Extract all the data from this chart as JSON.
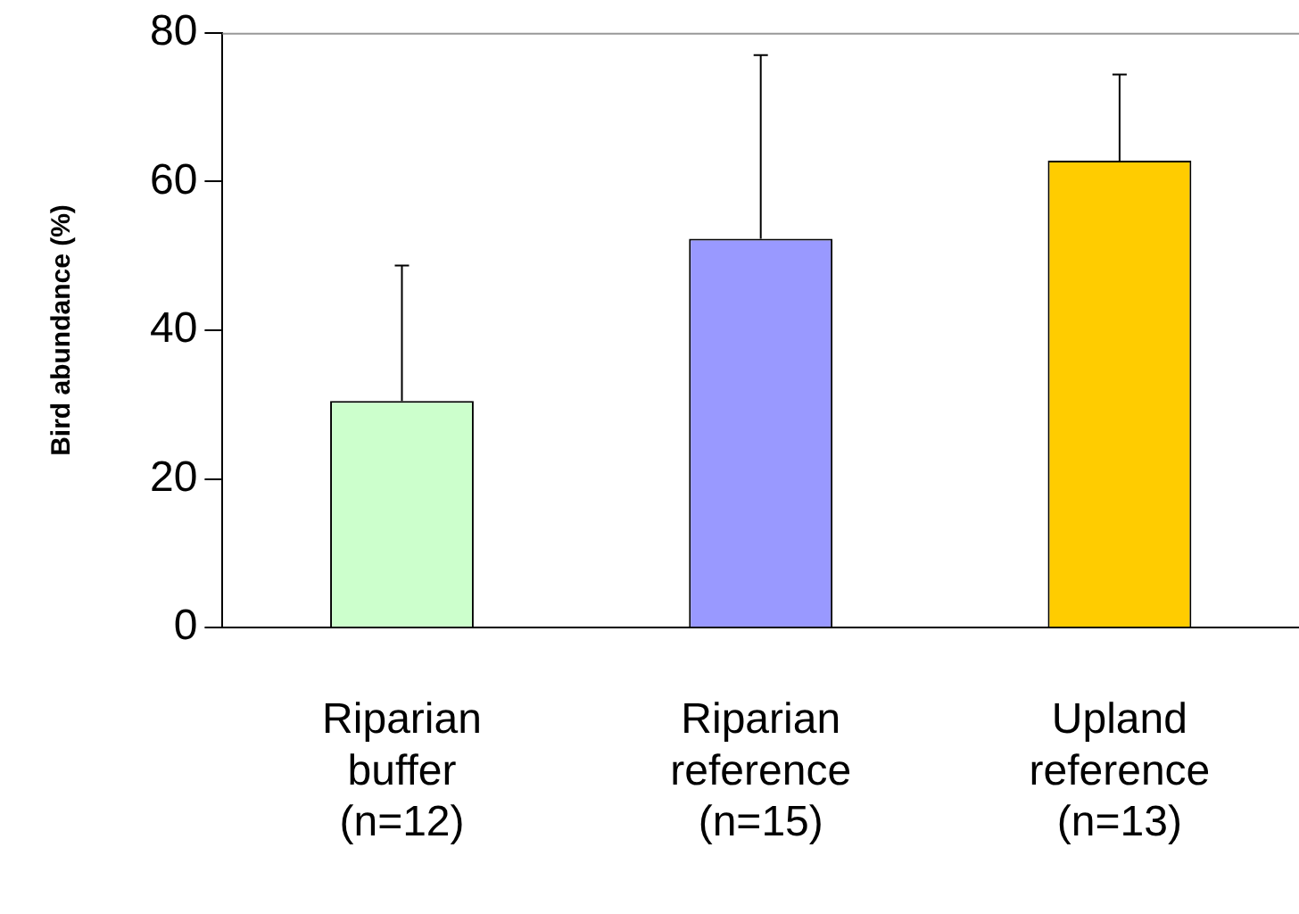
{
  "chart_data": {
    "type": "bar",
    "ylabel": "Bird abundance (%)",
    "categories": [
      "Riparian\nbuffer\n(n=12)",
      "Riparian\nreference\n(n=15)",
      "Upland\nreference\n(n=13)"
    ],
    "values": [
      30.5,
      52.3,
      62.8
    ],
    "colors": [
      "#ccffcc",
      "#9999ff",
      "#ffcc00"
    ],
    "errors": [
      [
        30.5,
        48.7
      ],
      [
        52.3,
        77.0
      ],
      [
        62.8,
        74.4
      ]
    ],
    "ylim": [
      0,
      80
    ],
    "yticks": [
      0,
      20,
      40,
      60,
      80
    ],
    "grid": false,
    "legend": false
  }
}
